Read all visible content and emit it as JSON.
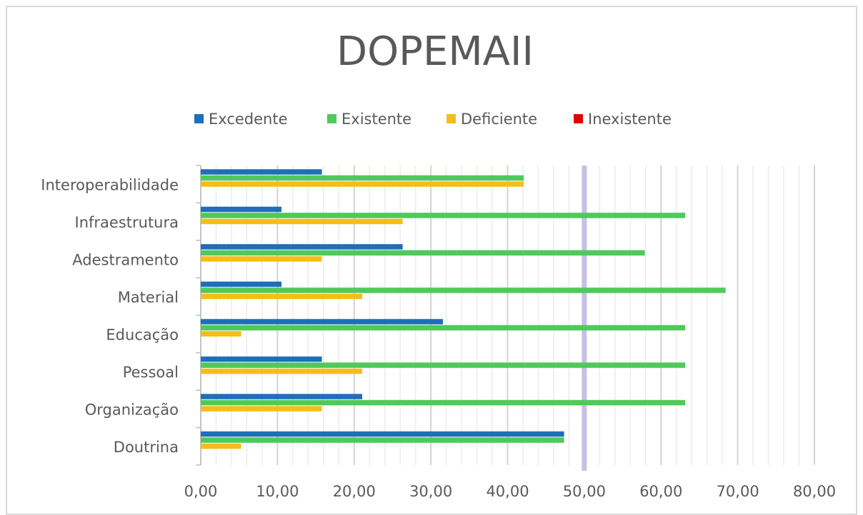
{
  "chart_data": {
    "type": "bar",
    "orientation": "horizontal",
    "title": "DOPEMAII",
    "categories": [
      "Interoperabilidade",
      "Infraestrutura",
      "Adestramento",
      "Material",
      "Educação",
      "Pessoal",
      "Organização",
      "Doutrina"
    ],
    "series": [
      {
        "name": "Excedente",
        "color": "#1f6fb8",
        "values": [
          15.79,
          10.53,
          26.32,
          10.53,
          31.58,
          15.79,
          21.05,
          47.37
        ]
      },
      {
        "name": "Existente",
        "color": "#4fc95b",
        "values": [
          42.11,
          63.16,
          57.89,
          68.42,
          63.16,
          63.16,
          63.16,
          47.37
        ]
      },
      {
        "name": "Deficiente",
        "color": "#f5be17",
        "values": [
          42.11,
          26.32,
          15.79,
          21.05,
          5.26,
          21.05,
          15.79,
          5.26
        ]
      },
      {
        "name": "Inexistente",
        "color": "#e00000",
        "values": [
          0,
          0,
          0,
          0,
          0,
          0,
          0,
          0
        ]
      }
    ],
    "xlim": [
      0,
      80
    ],
    "xticks": [
      {
        "value": 0,
        "label": "0,00"
      },
      {
        "value": 10,
        "label": "10,00"
      },
      {
        "value": 20,
        "label": "20,00"
      },
      {
        "value": 30,
        "label": "30,00"
      },
      {
        "value": 40,
        "label": "40,00"
      },
      {
        "value": 50,
        "label": "50,00"
      },
      {
        "value": 60,
        "label": "60,00"
      },
      {
        "value": 70,
        "label": "70,00"
      },
      {
        "value": 80,
        "label": "80,00"
      }
    ],
    "grid": true,
    "minor_grid_step": 2,
    "reference_line": {
      "value": 50,
      "color": "#c5c0e3"
    },
    "legend": "top"
  }
}
